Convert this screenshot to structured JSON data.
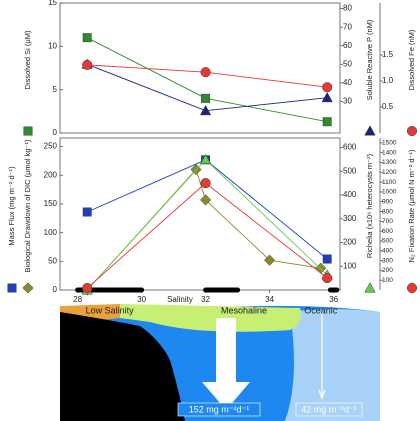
{
  "chart_data": [
    {
      "type": "line",
      "xlim": [
        27.45,
        36.2
      ],
      "ylim": [
        0,
        15
      ],
      "yticks": [
        0,
        5,
        10,
        15
      ],
      "y2lim": [
        13,
        83
      ],
      "y2ticks": [
        30,
        40,
        50,
        60,
        70,
        80
      ],
      "y3lim": [
        0,
        2.5
      ],
      "y3ticks": [
        0.5,
        {
          "value": 1,
          "label": "1.0"
        },
        1.5
      ],
      "series": [
        {
          "name": "Dissolved Si (μM)",
          "color": "#2e8b2e",
          "marker": "square",
          "axis": "y",
          "x": [
            28.3,
            32,
            35.8
          ],
          "values": [
            11,
            4,
            1.3
          ]
        },
        {
          "name": "Soluble Reactive P (nM)",
          "color": "#1a237e",
          "marker": "triangle",
          "axis": "y2",
          "x": [
            28.3,
            32,
            35.8
          ],
          "values": [
            50,
            25,
            32
          ]
        },
        {
          "name": "Dissolved Fe (nM)",
          "color": "#e53935",
          "marker": "circle",
          "axis": "y3",
          "x": [
            28.3,
            32,
            35.8
          ],
          "values": [
            1.31,
            1.17,
            0.88
          ]
        }
      ]
    },
    {
      "type": "line",
      "xlim": [
        27.45,
        36.2
      ],
      "xticks": [
        28,
        30,
        32,
        34,
        36
      ],
      "xlabel": "Salinity",
      "ylim": [
        0,
        265
      ],
      "yticks": [
        0,
        50,
        100,
        150,
        200,
        250
      ],
      "y2lim": [
        0,
        640
      ],
      "y2ticks": [
        100,
        200,
        300,
        400,
        500,
        600
      ],
      "y3lim": [
        0,
        1550
      ],
      "y3ticks": [
        100,
        200,
        300,
        400,
        500,
        600,
        700,
        800,
        900,
        1000,
        1100,
        1200,
        1300,
        1400,
        1500
      ],
      "regions": [
        "Low Salinity",
        "Mesohaline",
        "Oceanic"
      ],
      "ranges": [
        [
          28,
          30
        ],
        [
          32,
          33
        ],
        [
          35.9,
          36.1
        ]
      ],
      "series": [
        {
          "name": "Mass Flux (mg m⁻² d⁻¹)",
          "color": "#1f3fbf",
          "marker": "square",
          "axis": "y",
          "x": [
            28.3,
            32,
            35.8
          ],
          "values": [
            136,
            227,
            54
          ]
        },
        {
          "name": "Biological Drawdown of DIC (μmol kg⁻¹)",
          "color": "#8a8a2a",
          "marker": "diamond",
          "axis": "y",
          "x": [
            28.3,
            31.7,
            32.0,
            34.0,
            35.6
          ],
          "values": [
            0,
            210,
            157,
            52,
            38
          ]
        },
        {
          "name": "Richelia (x10⁶ heterocysts m⁻²)",
          "color": "#5fcf4a",
          "marker": "triangle",
          "axis": "y2",
          "x": [
            28.3,
            32,
            35.8
          ],
          "values": [
            0,
            549,
            63
          ]
        },
        {
          "name": "N₂ Fixation Rate (μmol N m⁻² d⁻¹)",
          "color": "#e53935",
          "marker": "circle",
          "axis": "y3",
          "x": [
            28.3,
            32,
            35.8
          ],
          "values": [
            20,
            1090,
            122
          ]
        }
      ]
    }
  ],
  "illustration": {
    "flux_labels": [
      "152 mg m⁻²d⁻¹",
      "42 mg m⁻²d⁻¹"
    ]
  }
}
